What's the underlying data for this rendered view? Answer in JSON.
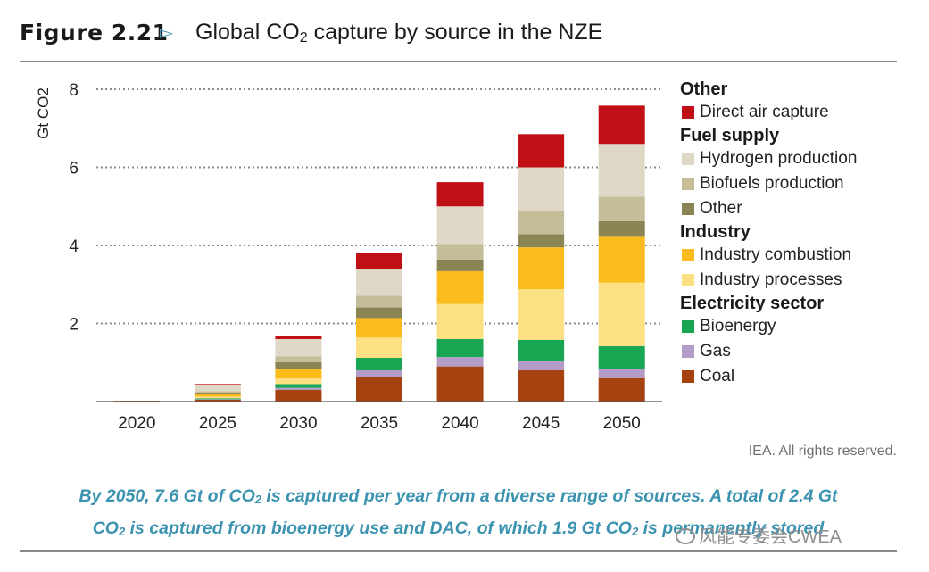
{
  "figure": {
    "number": "Figure 2.21",
    "arrow": "▻",
    "title_prefix": "Global CO",
    "title_sub": "2",
    "title_suffix": " capture by source in the NZE"
  },
  "credit": "IEA. All rights reserved.",
  "caption": {
    "line1_a": "By 2050, 7.6 Gt of CO",
    "line1_sub": "2",
    "line1_b": " is captured per year from a diverse range of sources. A total of 2.4 Gt",
    "line2_a": "CO",
    "line2_sub": "2",
    "line2_b": " is captured from bioenergy use and DAC, of which 1.9 Gt CO",
    "line2_sub2": "2",
    "line2_c": " is permanently stored"
  },
  "watermark": "风能专委会CWEA",
  "legend": [
    {
      "group": "Other",
      "items": [
        {
          "label": "Direct air capture",
          "color": "#c00f15"
        }
      ]
    },
    {
      "group": "Fuel supply",
      "items": [
        {
          "label": "Hydrogen production",
          "color": "#e0d8c6"
        },
        {
          "label": "Biofuels production",
          "color": "#c5bd99"
        },
        {
          "label": "Other",
          "color": "#8b8455"
        }
      ]
    },
    {
      "group": "Industry",
      "items": [
        {
          "label": "Industry combustion",
          "color": "#f9bc1c"
        },
        {
          "label": "Industry processes",
          "color": "#fde084"
        }
      ]
    },
    {
      "group": "Electricity sector",
      "items": [
        {
          "label": "Bioenergy",
          "color": "#18a653"
        },
        {
          "label": "Gas",
          "color": "#b49cc8"
        },
        {
          "label": "Coal",
          "color": "#a6420f"
        }
      ]
    }
  ],
  "chart_data": {
    "type": "bar",
    "stacked": true,
    "ylabel": "Gt CO2",
    "ylim": [
      0,
      8
    ],
    "yticks": [
      2,
      4,
      6,
      8
    ],
    "grid": "horizontal dotted",
    "legend_position": "right",
    "categories": [
      "2020",
      "2025",
      "2030",
      "2035",
      "2040",
      "2045",
      "2050"
    ],
    "series": [
      {
        "name": "Coal",
        "color": "#a6420f",
        "values": [
          0.02,
          0.05,
          0.3,
          0.62,
          0.9,
          0.8,
          0.6
        ]
      },
      {
        "name": "Gas",
        "color": "#b49cc8",
        "values": [
          0.0,
          0.01,
          0.05,
          0.18,
          0.24,
          0.24,
          0.24
        ]
      },
      {
        "name": "Bioenergy",
        "color": "#18a653",
        "values": [
          0.0,
          0.02,
          0.1,
          0.32,
          0.46,
          0.54,
          0.58
        ]
      },
      {
        "name": "Industry processes",
        "color": "#fde084",
        "values": [
          0.0,
          0.05,
          0.14,
          0.52,
          0.9,
          1.3,
          1.63
        ]
      },
      {
        "name": "Industry combustion",
        "color": "#f9bc1c",
        "values": [
          0.0,
          0.06,
          0.25,
          0.5,
          0.84,
          1.07,
          1.17
        ]
      },
      {
        "name": "Other",
        "color": "#8b8455",
        "values": [
          0.0,
          0.04,
          0.17,
          0.27,
          0.3,
          0.34,
          0.4
        ]
      },
      {
        "name": "Biofuels production",
        "color": "#c5bd99",
        "values": [
          0.0,
          0.03,
          0.15,
          0.3,
          0.4,
          0.58,
          0.63
        ]
      },
      {
        "name": "Hydrogen production",
        "color": "#e0d8c6",
        "values": [
          0.0,
          0.17,
          0.44,
          0.68,
          0.96,
          1.13,
          1.35
        ]
      },
      {
        "name": "Direct air capture",
        "color": "#c00f15",
        "values": [
          0.0,
          0.02,
          0.08,
          0.41,
          0.62,
          0.85,
          0.98
        ]
      }
    ]
  }
}
